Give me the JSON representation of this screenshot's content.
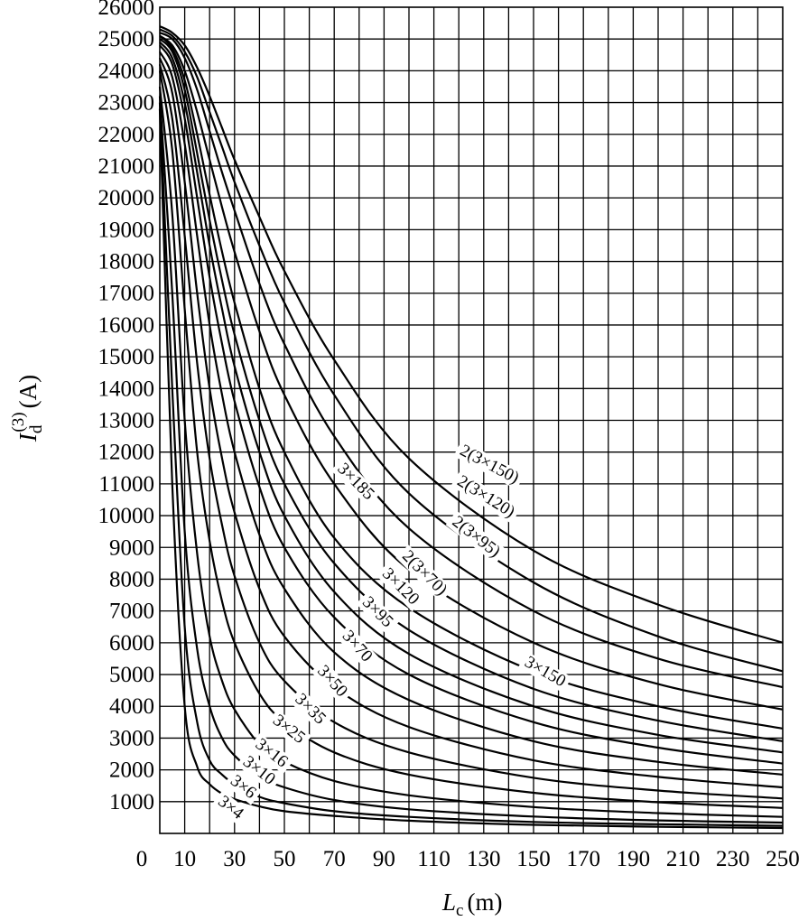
{
  "chart_data": {
    "type": "line",
    "xlabel": {
      "main": "L",
      "sub": "c",
      "unit": "(m)"
    },
    "ylabel": {
      "main": "I",
      "sub": "d",
      "sup": "(3)",
      "unit": "(A)"
    },
    "xlim": [
      0,
      250
    ],
    "ylim": [
      0,
      26000
    ],
    "x_ticks": [
      0,
      10,
      30,
      50,
      70,
      90,
      110,
      130,
      150,
      170,
      190,
      210,
      230,
      250
    ],
    "x_tick_labels": [
      "0",
      "10",
      "30",
      "50",
      "70",
      "90",
      "110",
      "130",
      "150",
      "170",
      "190",
      "210",
      "230",
      "250"
    ],
    "y_ticks": [
      1000,
      2000,
      3000,
      4000,
      5000,
      6000,
      7000,
      8000,
      9000,
      10000,
      11000,
      12000,
      13000,
      14000,
      15000,
      16000,
      17000,
      18000,
      19000,
      20000,
      21000,
      22000,
      23000,
      24000,
      25000,
      26000
    ],
    "y_tick_labels": [
      "1000",
      "2000",
      "3000",
      "4000",
      "5000",
      "6000",
      "7000",
      "8000",
      "9000",
      "10000",
      "11000",
      "12000",
      "13000",
      "14000",
      "15000",
      "16000",
      "17000",
      "18000",
      "19000",
      "20000",
      "21000",
      "22000",
      "23000",
      "24000",
      "25000",
      "26000"
    ],
    "grid": true,
    "series": [
      {
        "name": "3×4",
        "label_at": [
          23,
          950
        ],
        "label_angle": 38,
        "points": [
          [
            0,
            22800
          ],
          [
            5,
            11000
          ],
          [
            10,
            4000
          ],
          [
            15,
            2100
          ],
          [
            20,
            1550
          ],
          [
            25,
            1250
          ],
          [
            30,
            1080
          ],
          [
            40,
            850
          ],
          [
            50,
            700
          ],
          [
            70,
            550
          ],
          [
            100,
            400
          ],
          [
            150,
            270
          ],
          [
            200,
            210
          ],
          [
            250,
            170
          ]
        ]
      },
      {
        "name": "3×6",
        "label_at": [
          28,
          1600
        ],
        "label_angle": 38,
        "points": [
          [
            0,
            23000
          ],
          [
            5,
            14000
          ],
          [
            10,
            6500
          ],
          [
            15,
            3500
          ],
          [
            20,
            2300
          ],
          [
            25,
            1850
          ],
          [
            30,
            1550
          ],
          [
            40,
            1150
          ],
          [
            50,
            950
          ],
          [
            70,
            700
          ],
          [
            100,
            520
          ],
          [
            150,
            360
          ],
          [
            200,
            290
          ],
          [
            250,
            240
          ]
        ]
      },
      {
        "name": "3×10",
        "label_at": [
          33,
          2200
        ],
        "label_angle": 38,
        "points": [
          [
            0,
            23200
          ],
          [
            5,
            17000
          ],
          [
            10,
            9500
          ],
          [
            15,
            5800
          ],
          [
            20,
            4000
          ],
          [
            25,
            3000
          ],
          [
            30,
            2450
          ],
          [
            40,
            1800
          ],
          [
            50,
            1450
          ],
          [
            70,
            1050
          ],
          [
            100,
            760
          ],
          [
            150,
            530
          ],
          [
            200,
            410
          ],
          [
            250,
            340
          ]
        ]
      },
      {
        "name": "3×16",
        "label_at": [
          38,
          2750
        ],
        "label_angle": 38,
        "points": [
          [
            0,
            23500
          ],
          [
            5,
            19500
          ],
          [
            10,
            13000
          ],
          [
            15,
            8800
          ],
          [
            20,
            6200
          ],
          [
            25,
            4800
          ],
          [
            30,
            3900
          ],
          [
            40,
            2800
          ],
          [
            50,
            2250
          ],
          [
            70,
            1650
          ],
          [
            100,
            1200
          ],
          [
            150,
            830
          ],
          [
            200,
            640
          ],
          [
            250,
            520
          ]
        ]
      },
      {
        "name": "3×25",
        "label_at": [
          45,
          3500
        ],
        "label_angle": 38,
        "points": [
          [
            0,
            24000
          ],
          [
            5,
            21500
          ],
          [
            10,
            16500
          ],
          [
            15,
            12000
          ],
          [
            20,
            9200
          ],
          [
            25,
            7300
          ],
          [
            30,
            6000
          ],
          [
            40,
            4400
          ],
          [
            50,
            3500
          ],
          [
            70,
            2550
          ],
          [
            100,
            1850
          ],
          [
            150,
            1280
          ],
          [
            200,
            980
          ],
          [
            250,
            800
          ]
        ]
      },
      {
        "name": "3×35",
        "label_at": [
          54,
          4200
        ],
        "label_angle": 45,
        "points": [
          [
            0,
            24200
          ],
          [
            5,
            22500
          ],
          [
            10,
            18800
          ],
          [
            15,
            14800
          ],
          [
            20,
            11800
          ],
          [
            25,
            9700
          ],
          [
            30,
            8100
          ],
          [
            40,
            6000
          ],
          [
            50,
            4800
          ],
          [
            70,
            3500
          ],
          [
            100,
            2550
          ],
          [
            150,
            1750
          ],
          [
            200,
            1350
          ],
          [
            250,
            1100
          ]
        ]
      },
      {
        "name": "3×50",
        "label_at": [
          63,
          5100
        ],
        "label_angle": 48,
        "points": [
          [
            0,
            24400
          ],
          [
            5,
            23300
          ],
          [
            10,
            20500
          ],
          [
            15,
            17000
          ],
          [
            20,
            14000
          ],
          [
            25,
            11800
          ],
          [
            30,
            10100
          ],
          [
            40,
            7700
          ],
          [
            50,
            6200
          ],
          [
            70,
            4600
          ],
          [
            100,
            3350
          ],
          [
            150,
            2300
          ],
          [
            200,
            1780
          ],
          [
            250,
            1450
          ]
        ]
      },
      {
        "name": "3×70",
        "label_at": [
          73,
          6200
        ],
        "label_angle": 48,
        "points": [
          [
            0,
            24600
          ],
          [
            5,
            23800
          ],
          [
            10,
            21700
          ],
          [
            15,
            18800
          ],
          [
            20,
            16000
          ],
          [
            25,
            13800
          ],
          [
            30,
            12000
          ],
          [
            40,
            9400
          ],
          [
            50,
            7700
          ],
          [
            70,
            5700
          ],
          [
            100,
            4200
          ],
          [
            150,
            2900
          ],
          [
            200,
            2250
          ],
          [
            250,
            1850
          ]
        ]
      },
      {
        "name": "3×95",
        "label_at": [
          81,
          7250
        ],
        "label_angle": 45,
        "points": [
          [
            0,
            24800
          ],
          [
            5,
            24200
          ],
          [
            10,
            22500
          ],
          [
            15,
            20000
          ],
          [
            20,
            17500
          ],
          [
            25,
            15400
          ],
          [
            30,
            13600
          ],
          [
            40,
            10900
          ],
          [
            50,
            9000
          ],
          [
            70,
            6800
          ],
          [
            100,
            5000
          ],
          [
            150,
            3500
          ],
          [
            200,
            2700
          ],
          [
            250,
            2200
          ]
        ]
      },
      {
        "name": "3×120",
        "label_at": [
          89,
          8150
        ],
        "label_angle": 45,
        "points": [
          [
            0,
            24900
          ],
          [
            5,
            24400
          ],
          [
            10,
            23000
          ],
          [
            15,
            20800
          ],
          [
            20,
            18500
          ],
          [
            25,
            16500
          ],
          [
            30,
            14700
          ],
          [
            40,
            12000
          ],
          [
            50,
            10000
          ],
          [
            70,
            7600
          ],
          [
            100,
            5650
          ],
          [
            150,
            4000
          ],
          [
            200,
            3100
          ],
          [
            250,
            2550
          ]
        ]
      },
      {
        "name": "3×150",
        "label_at": [
          146,
          5300
        ],
        "label_angle": 30,
        "points": [
          [
            0,
            25000
          ],
          [
            5,
            24600
          ],
          [
            10,
            23400
          ],
          [
            15,
            21400
          ],
          [
            20,
            19300
          ],
          [
            25,
            17400
          ],
          [
            30,
            15700
          ],
          [
            40,
            13000
          ],
          [
            50,
            11000
          ],
          [
            70,
            8500
          ],
          [
            100,
            6400
          ],
          [
            150,
            4550
          ],
          [
            200,
            3550
          ],
          [
            250,
            2900
          ]
        ]
      },
      {
        "name": "3×185",
        "label_at": [
          71,
          11450
        ],
        "label_angle": 45,
        "points": [
          [
            0,
            25100
          ],
          [
            5,
            24700
          ],
          [
            10,
            23700
          ],
          [
            15,
            22000
          ],
          [
            20,
            20100
          ],
          [
            25,
            18300
          ],
          [
            30,
            16700
          ],
          [
            40,
            14000
          ],
          [
            50,
            12000
          ],
          [
            70,
            9300
          ],
          [
            100,
            7100
          ],
          [
            150,
            5100
          ],
          [
            200,
            4000
          ],
          [
            250,
            3300
          ]
        ]
      },
      {
        "name": "2(3×70)",
        "label_at": [
          97,
          8700
        ],
        "label_angle": 45,
        "points": [
          [
            0,
            25100
          ],
          [
            5,
            24800
          ],
          [
            10,
            24000
          ],
          [
            15,
            22700
          ],
          [
            20,
            21200
          ],
          [
            25,
            19700
          ],
          [
            30,
            18300
          ],
          [
            40,
            15800
          ],
          [
            50,
            13800
          ],
          [
            70,
            11000
          ],
          [
            100,
            8300
          ],
          [
            150,
            6000
          ],
          [
            200,
            4700
          ],
          [
            250,
            3900
          ]
        ]
      },
      {
        "name": "2(3×95)",
        "label_at": [
          117,
          9750
        ],
        "label_angle": 38,
        "points": [
          [
            0,
            25200
          ],
          [
            5,
            25000
          ],
          [
            10,
            24400
          ],
          [
            15,
            23400
          ],
          [
            20,
            22100
          ],
          [
            25,
            20800
          ],
          [
            30,
            19600
          ],
          [
            40,
            17300
          ],
          [
            50,
            15400
          ],
          [
            70,
            12500
          ],
          [
            100,
            9600
          ],
          [
            150,
            7000
          ],
          [
            200,
            5500
          ],
          [
            250,
            4600
          ]
        ]
      },
      {
        "name": "2(3×120)",
        "label_at": [
          119,
          11000
        ],
        "label_angle": 32,
        "points": [
          [
            0,
            25300
          ],
          [
            5,
            25100
          ],
          [
            10,
            24600
          ],
          [
            15,
            23800
          ],
          [
            20,
            22700
          ],
          [
            25,
            21600
          ],
          [
            30,
            20500
          ],
          [
            40,
            18500
          ],
          [
            50,
            16700
          ],
          [
            70,
            13800
          ],
          [
            100,
            10700
          ],
          [
            150,
            7900
          ],
          [
            200,
            6200
          ],
          [
            250,
            5100
          ]
        ]
      },
      {
        "name": "2(3×150)",
        "label_at": [
          120,
          11950
        ],
        "label_angle": 28,
        "points": [
          [
            0,
            25400
          ],
          [
            5,
            25200
          ],
          [
            10,
            24800
          ],
          [
            15,
            24100
          ],
          [
            20,
            23200
          ],
          [
            25,
            22200
          ],
          [
            30,
            21200
          ],
          [
            40,
            19400
          ],
          [
            50,
            17700
          ],
          [
            70,
            14900
          ],
          [
            100,
            11800
          ],
          [
            150,
            8900
          ],
          [
            200,
            7200
          ],
          [
            250,
            6000
          ]
        ]
      }
    ]
  }
}
